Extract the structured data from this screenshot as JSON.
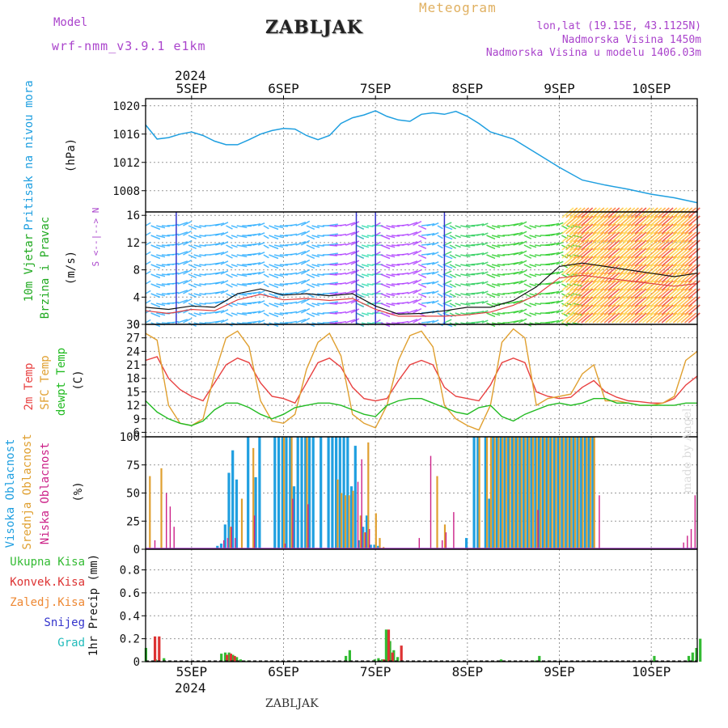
{
  "header": {
    "model_label": "Model",
    "model_name": "wrf-nmm_v3.9.1  e1km",
    "station": "ZABLJAK",
    "meteogram": "Meteogram",
    "lonlat": "lon,lat (19.15E, 43.1125N)",
    "altitude": "Nadmorska Visina 1450m",
    "altitude_model": "Nadmorska Visina u modelu 1406.03m"
  },
  "footer": {
    "station": "ZABLJAK",
    "signature": "made by Angel"
  },
  "colors": {
    "pressure": "#1f9fe0",
    "t2m": "#e84040",
    "sfc": "#e0a030",
    "dew": "#22bb22",
    "high_cloud": "#1f9fe0",
    "mid_cloud": "#e0a030",
    "low_cloud": "#cc2288",
    "total_precip": "#33bb33",
    "conv_precip": "#dd3333",
    "frozen_precip": "#ee8833",
    "snow": "#3333cc",
    "graupel": "#22bbbb",
    "wind_label": "#22aa22",
    "wind_axis": "#aa44cc"
  },
  "chart_data": [
    {
      "type": "line",
      "panel": "pressure",
      "ylabel": "Pritisak na nivou mora",
      "unit": "(hPa)",
      "ylim": [
        1005,
        1021
      ],
      "yticks": [
        1008,
        1012,
        1016,
        1020
      ],
      "x_hours": [
        0,
        3,
        6,
        9,
        12,
        15,
        18,
        21,
        24,
        27,
        30,
        33,
        36,
        39,
        42,
        45,
        48,
        51,
        54,
        57,
        60,
        63,
        66,
        69,
        72,
        75,
        78,
        81,
        84,
        87,
        90,
        96,
        102,
        108,
        114,
        120,
        126,
        132,
        138,
        144
      ],
      "series": [
        {
          "values": [
            1017.3,
            1015.3,
            1015.5,
            1016.0,
            1016.3,
            1015.8,
            1015.0,
            1014.5,
            1014.5,
            1015.2,
            1016.0,
            1016.5,
            1016.8,
            1016.7,
            1015.8,
            1015.2,
            1015.8,
            1017.5,
            1018.3,
            1018.7,
            1019.3,
            1018.5,
            1018.0,
            1017.8,
            1018.8,
            1019.0,
            1018.8,
            1019.2,
            1018.5,
            1017.5,
            1016.3,
            1015.3,
            1013.3,
            1011.3,
            1009.5,
            1008.8,
            1008.2,
            1007.5,
            1007.0,
            1006.3
          ]
        }
      ]
    },
    {
      "type": "line",
      "panel": "wind",
      "ylabel": "10m Vjetar",
      "ylabel2": "Brzina i Pravac",
      "unit": "(m/s)",
      "compass": "S <--|--> N",
      "ylim": [
        0,
        16.5
      ],
      "yticks": [
        0,
        4,
        8,
        12,
        16
      ],
      "x_hours": [
        0,
        6,
        12,
        18,
        24,
        30,
        36,
        42,
        48,
        54,
        60,
        66,
        72,
        78,
        84,
        90,
        96,
        102,
        108,
        114,
        120,
        126,
        132,
        138,
        144
      ],
      "series": [
        {
          "name_role": "speed",
          "values": [
            2.5,
            2.2,
            2.7,
            2.5,
            4.5,
            5.2,
            4.3,
            4.5,
            4.2,
            4.5,
            2.7,
            1.5,
            1.6,
            2.0,
            2.5,
            2.5,
            3.5,
            5.5,
            8.5,
            9.0,
            8.5,
            8.0,
            7.5,
            7.0,
            7.5
          ]
        },
        {
          "name_role": "gust",
          "values": [
            2.0,
            1.6,
            2.2,
            2.0,
            3.6,
            4.4,
            3.6,
            3.8,
            3.5,
            3.8,
            2.2,
            1.2,
            1.2,
            1.2,
            1.4,
            1.8,
            2.8,
            4.3,
            6.8,
            7.2,
            6.8,
            6.4,
            6.0,
            5.6,
            6.0
          ]
        }
      ]
    },
    {
      "type": "line",
      "panel": "temperature",
      "ylabels": [
        "2m Temp",
        "SFC Temp",
        "dewpt Temp"
      ],
      "unit": "(C)",
      "ylim": [
        5,
        30
      ],
      "yticks": [
        6,
        9,
        12,
        15,
        18,
        21,
        24,
        27,
        30
      ],
      "x_hours": [
        0,
        3,
        6,
        9,
        12,
        15,
        18,
        21,
        24,
        27,
        30,
        33,
        36,
        39,
        42,
        45,
        48,
        51,
        54,
        57,
        60,
        63,
        66,
        69,
        72,
        75,
        78,
        81,
        84,
        87,
        90,
        93,
        96,
        99,
        102,
        105,
        108,
        111,
        114,
        117,
        120,
        123,
        126,
        129,
        132,
        135,
        138,
        141,
        144
      ],
      "series": [
        {
          "name": "2m Temp",
          "values": [
            22,
            22.8,
            18,
            15.5,
            14,
            13,
            17,
            21,
            22.5,
            21.5,
            17,
            14,
            13.5,
            12.5,
            17,
            21.5,
            22.5,
            20.5,
            16,
            13.5,
            13,
            13.5,
            17.5,
            21,
            22,
            21,
            16,
            14,
            13.5,
            13,
            16.5,
            21.5,
            22.5,
            21.5,
            15,
            14,
            13.5,
            13.8,
            16,
            17.5,
            15,
            13.8,
            13,
            12.8,
            12.5,
            12.5,
            13.5,
            16.5,
            18.5
          ]
        },
        {
          "name": "SFC Temp",
          "values": [
            28,
            26.5,
            12,
            8,
            7.5,
            9,
            19,
            27,
            28.5,
            25,
            13,
            8.5,
            8,
            10,
            20,
            26,
            28,
            23,
            10,
            8,
            7,
            12,
            22,
            27.5,
            28.5,
            25,
            12,
            9,
            7.5,
            6.5,
            12,
            26,
            29,
            27,
            12,
            13.5,
            14,
            14.5,
            19,
            21,
            13,
            13,
            12.5,
            12,
            12,
            12.5,
            14,
            22,
            24
          ]
        },
        {
          "name": "dewpt Temp",
          "values": [
            13,
            10.5,
            9,
            8,
            7.5,
            8.5,
            11,
            12.5,
            12.5,
            11.5,
            10,
            9,
            10,
            11.5,
            12,
            12.5,
            12.5,
            12,
            11,
            10,
            9.5,
            12,
            13,
            13.5,
            13.5,
            12.5,
            11.5,
            10.5,
            10,
            11.5,
            12,
            9.5,
            8.5,
            10,
            11,
            12,
            12.5,
            12,
            12.5,
            13.5,
            13.5,
            12.5,
            12.5,
            12,
            12,
            12,
            12,
            12.5,
            12.5
          ]
        }
      ]
    },
    {
      "type": "bar",
      "panel": "clouds",
      "ylabels": [
        "Visoka Oblacnost",
        "Srednja Oblacnost",
        "Niska Oblacnost"
      ],
      "unit": "(%)",
      "ylim": [
        0,
        100
      ],
      "yticks": [
        0,
        25,
        50,
        75,
        100
      ],
      "series": [
        {
          "name": "Visoka Oblacnost",
          "hours": [
            19,
            20,
            21,
            22,
            23,
            24,
            27,
            29,
            30,
            34,
            35,
            36,
            37,
            38,
            39,
            40,
            41,
            42,
            43,
            44,
            46,
            48,
            49,
            50,
            51,
            52,
            53,
            54,
            55,
            56,
            57,
            58,
            59,
            60,
            61,
            84,
            86,
            87,
            89,
            90,
            91,
            92,
            93,
            94,
            95,
            96,
            97,
            98,
            99,
            100,
            101,
            102,
            103,
            104,
            105,
            106,
            107,
            108,
            109,
            110,
            111,
            112,
            113,
            114,
            115,
            116,
            117
          ],
          "values": [
            3,
            5,
            22,
            68,
            88,
            62,
            100,
            64,
            100,
            100,
            100,
            100,
            100,
            100,
            56,
            100,
            100,
            100,
            100,
            100,
            100,
            100,
            100,
            100,
            100,
            100,
            100,
            56,
            92,
            8,
            20,
            30,
            4,
            4,
            3,
            10,
            100,
            100,
            100,
            45,
            100,
            100,
            100,
            100,
            100,
            100,
            100,
            100,
            100,
            100,
            100,
            100,
            100,
            100,
            100,
            100,
            100,
            100,
            100,
            100,
            100,
            100,
            100,
            100,
            100,
            100,
            100
          ]
        },
        {
          "name": "Srednja Oblacnost",
          "hours": [
            1,
            4,
            22,
            25,
            28,
            36,
            38,
            42,
            50,
            51,
            52,
            53,
            54,
            56,
            57,
            58,
            60,
            61,
            62,
            76,
            78,
            87,
            89,
            90,
            91,
            92,
            93,
            94,
            95,
            96,
            97,
            98,
            99,
            100,
            101,
            102,
            103,
            104,
            105,
            106,
            107,
            108,
            109,
            110,
            111,
            112,
            113,
            114,
            115,
            116,
            117
          ],
          "values": [
            65,
            72,
            20,
            45,
            90,
            100,
            100,
            100,
            62,
            50,
            48,
            48,
            52,
            30,
            15,
            95,
            32,
            10,
            2,
            65,
            22,
            100,
            100,
            100,
            100,
            100,
            100,
            100,
            100,
            100,
            100,
            100,
            100,
            100,
            100,
            100,
            100,
            100,
            100,
            100,
            100,
            100,
            100,
            100,
            100,
            100,
            100,
            100,
            100,
            100,
            100
          ]
        },
        {
          "name": "Niska Oblacnost",
          "hours": [
            2,
            5,
            6,
            7,
            20,
            21,
            22,
            23,
            28,
            36,
            38,
            42,
            55,
            56,
            57,
            58,
            71,
            74,
            77,
            78,
            80,
            102,
            118,
            140,
            141,
            142,
            143
          ],
          "values": [
            8,
            50,
            38,
            20,
            8,
            10,
            20,
            10,
            30,
            5,
            45,
            40,
            60,
            80,
            15,
            18,
            10,
            83,
            8,
            15,
            33,
            35,
            48,
            6,
            12,
            18,
            48
          ]
        }
      ]
    },
    {
      "type": "bar",
      "panel": "precip",
      "ylabels": [
        "Ukupna Kisa",
        "Konvek.Kisa",
        "Zaledj.Kisa",
        "Snijeg",
        "Grad"
      ],
      "unit": "1hr Precip (mm)",
      "ylim": [
        0,
        0.98
      ],
      "yticks": [
        0,
        0.2,
        0.4,
        0.6,
        0.8
      ],
      "series": [
        {
          "name": "Ukupna Kisa",
          "hours": [
            0.3,
            2.8,
            5,
            20,
            21,
            22,
            23,
            24,
            25,
            26,
            27,
            52.5,
            53.5,
            60,
            61,
            62,
            63,
            64,
            65,
            66,
            93,
            102,
            103,
            133,
            142,
            143,
            144,
            145
          ],
          "values": [
            0.12,
            0.02,
            0.03,
            0.07,
            0.08,
            0.08,
            0.06,
            0.04,
            0.02,
            0.01,
            0.01,
            0.05,
            0.1,
            0.02,
            0.03,
            0.02,
            0.28,
            0.18,
            0.1,
            0.04,
            0.02,
            0.01,
            0.05,
            0.05,
            0.05,
            0.08,
            0.12,
            0.2
          ]
        },
        {
          "name": "Konvek.Kisa",
          "hours": [
            2.2,
            3.3,
            21,
            22,
            23,
            62,
            63.2,
            64.2,
            66.5
          ],
          "values": [
            0.22,
            0.22,
            0.06,
            0.07,
            0.05,
            0.02,
            0.28,
            0.08,
            0.14
          ]
        }
      ]
    }
  ],
  "x_axis": {
    "top_year": "2024",
    "bottom_year": "2024",
    "days": [
      "5SEP",
      "6SEP",
      "7SEP",
      "8SEP",
      "9SEP",
      "10SEP"
    ]
  }
}
